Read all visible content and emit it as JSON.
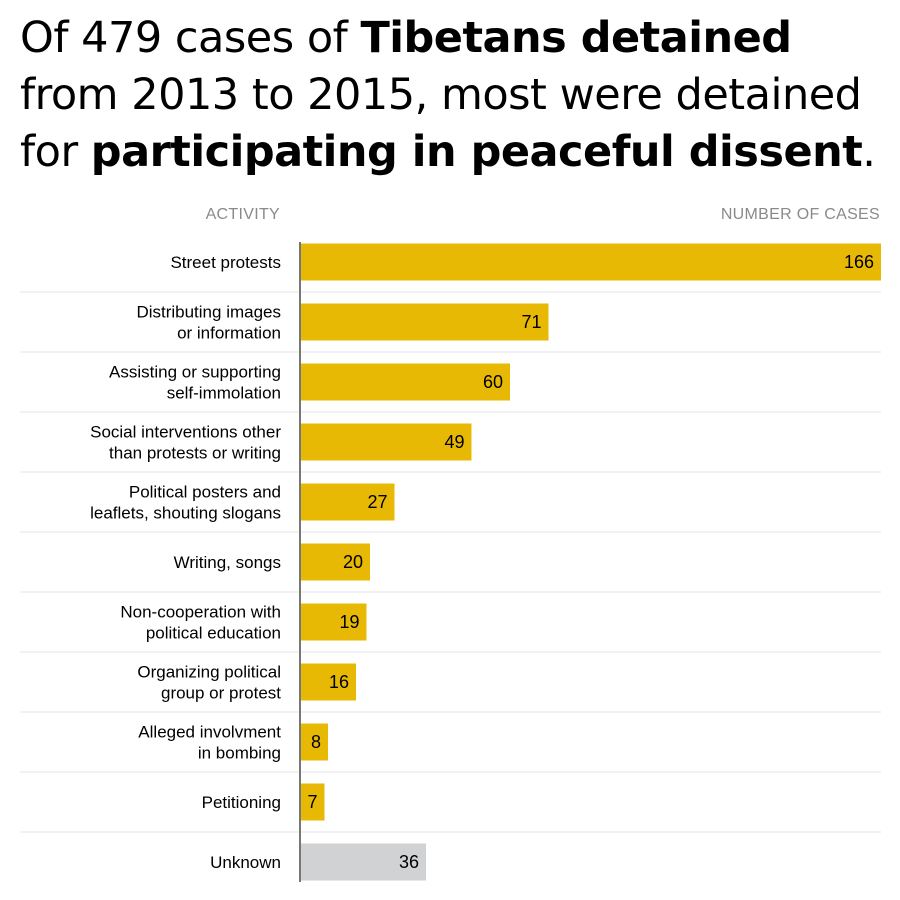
{
  "title_parts": [
    {
      "text": "Of 479 cases of ",
      "bold": false
    },
    {
      "text": "Tibetans detained",
      "bold": true
    },
    {
      "text": " from 2013 to 2015, most were detained for ",
      "bold": false
    },
    {
      "text": "participating in peaceful dissent",
      "bold": true
    },
    {
      "text": ".",
      "bold": false
    }
  ],
  "chart_data": {
    "type": "bar",
    "orientation": "horizontal",
    "title": "Of 479 cases of Tibetans detained from 2013 to 2015, most were detained for participating in peaceful dissent.",
    "ylabel": "ACTIVITY",
    "xlabel": "NUMBER OF CASES",
    "xlim": [
      0,
      166
    ],
    "grid": false,
    "categories": [
      "Street protests",
      "Distributing images\nor information",
      "Assisting or supporting\nself-immolation",
      "Social interventions other\nthan protests or writing",
      "Political posters and\nleaflets, shouting slogans",
      "Writing, songs",
      "Non-cooperation with\npolitical education",
      "Organizing political\ngroup or protest",
      "Alleged involvment\nin bombing",
      "Petitioning",
      "Unknown"
    ],
    "values": [
      166,
      71,
      60,
      49,
      27,
      20,
      19,
      16,
      8,
      7,
      36
    ],
    "colors": {
      "known": "#E8B904",
      "unknown": "#D1D2D4",
      "axis": "#777777",
      "divider": "#E6E6E6"
    }
  }
}
